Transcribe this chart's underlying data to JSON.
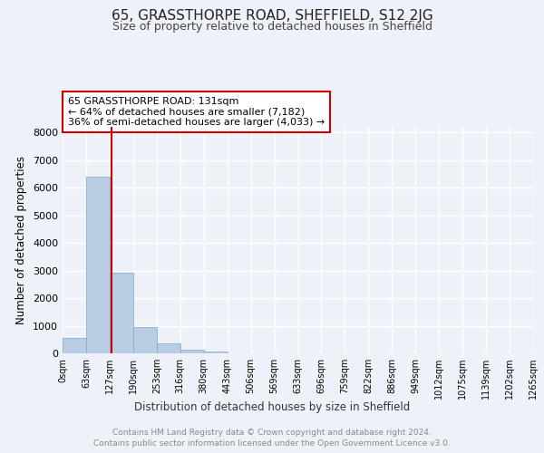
{
  "title": "65, GRASSTHORPE ROAD, SHEFFIELD, S12 2JG",
  "subtitle": "Size of property relative to detached houses in Sheffield",
  "xlabel": "Distribution of detached houses by size in Sheffield",
  "ylabel": "Number of detached properties",
  "bar_values": [
    560,
    6380,
    2930,
    960,
    350,
    140,
    80,
    0,
    0,
    0,
    0,
    0,
    0,
    0,
    0,
    0,
    0,
    0,
    0,
    0
  ],
  "bin_labels": [
    "0sqm",
    "63sqm",
    "127sqm",
    "190sqm",
    "253sqm",
    "316sqm",
    "380sqm",
    "443sqm",
    "506sqm",
    "569sqm",
    "633sqm",
    "696sqm",
    "759sqm",
    "822sqm",
    "886sqm",
    "949sqm",
    "1012sqm",
    "1075sqm",
    "1139sqm",
    "1202sqm",
    "1265sqm"
  ],
  "bar_color": "#b8cce4",
  "bar_edge_color": "#7ba7c9",
  "property_sqm": 131,
  "bin_width": 63,
  "annotation_text": "65 GRASSTHORPE ROAD: 131sqm\n← 64% of detached houses are smaller (7,182)\n36% of semi-detached houses are larger (4,033) →",
  "annotation_box_color": "#ffffff",
  "annotation_box_edge": "#cc0000",
  "property_line_color": "#cc0000",
  "ylim": [
    0,
    8200
  ],
  "yticks": [
    0,
    1000,
    2000,
    3000,
    4000,
    5000,
    6000,
    7000,
    8000
  ],
  "footer_line1": "Contains HM Land Registry data © Crown copyright and database right 2024.",
  "footer_line2": "Contains public sector information licensed under the Open Government Licence v3.0.",
  "background_color": "#eef2f8",
  "grid_color": "#ffffff"
}
